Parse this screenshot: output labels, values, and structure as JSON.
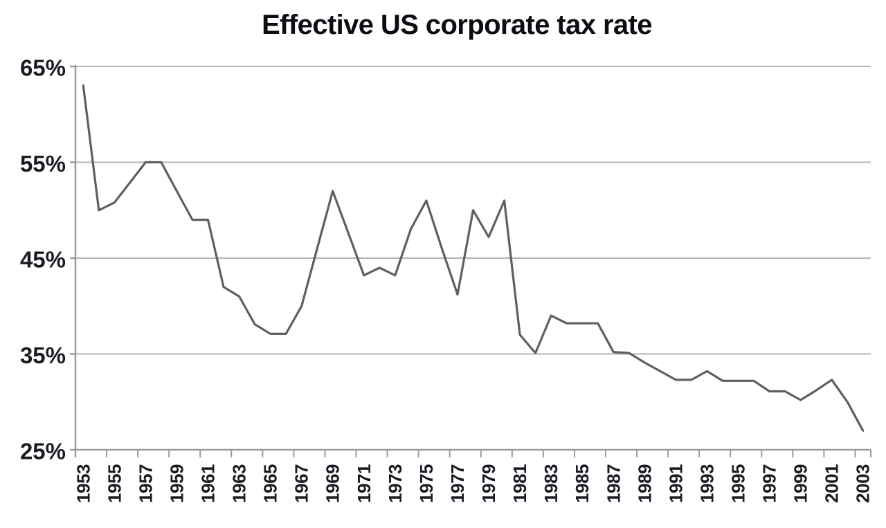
{
  "chart_data": {
    "type": "line",
    "title": "Effective US corporate tax rate",
    "xlabel": "",
    "ylabel": "",
    "x": [
      1953,
      1954,
      1955,
      1956,
      1957,
      1958,
      1959,
      1960,
      1961,
      1962,
      1963,
      1964,
      1965,
      1966,
      1967,
      1968,
      1969,
      1970,
      1971,
      1972,
      1973,
      1974,
      1975,
      1976,
      1977,
      1978,
      1979,
      1980,
      1981,
      1982,
      1983,
      1984,
      1985,
      1986,
      1987,
      1988,
      1989,
      1990,
      1991,
      1992,
      1993,
      1994,
      1995,
      1996,
      1997,
      1998,
      1999,
      2000,
      2001,
      2002,
      2003
    ],
    "values": [
      63,
      50,
      50.8,
      52.9,
      55,
      55,
      52,
      49,
      49,
      42,
      41,
      38.1,
      37.1,
      37.1,
      40,
      46,
      52,
      47.6,
      43.2,
      44,
      43.2,
      48,
      51,
      46,
      41.2,
      50,
      47.2,
      51,
      37,
      35.1,
      39,
      38.2,
      38.2,
      38.2,
      35.2,
      35.1,
      34.1,
      33.2,
      32.3,
      32.3,
      33.2,
      32.2,
      32.2,
      32.2,
      31.1,
      31.1,
      30.2,
      31.2,
      32.3,
      30,
      27
    ],
    "ylim": [
      25,
      65
    ],
    "yticks": [
      65,
      55,
      45,
      35,
      25
    ],
    "ytick_labels": [
      "65%",
      "55%",
      "45%",
      "35%",
      "25%"
    ],
    "xtick_labels": [
      "1953",
      "1955",
      "1957",
      "1959",
      "1961",
      "1963",
      "1965",
      "1967",
      "1969",
      "1971",
      "1973",
      "1975",
      "1977",
      "1979",
      "1981",
      "1983",
      "1985",
      "1987",
      "1989",
      "1991",
      "1993",
      "1995",
      "1997",
      "1999",
      "2001",
      "2003"
    ],
    "xtick_interval": 2,
    "grid": "horizontal",
    "legend": "none",
    "colors": {
      "line": "#5f5f5f",
      "gridline": "#b4b4b4",
      "axis": "#9b9b9b",
      "tick_label": "#1b1b24",
      "title": "#0c0c12",
      "background": "#ffffff"
    }
  }
}
